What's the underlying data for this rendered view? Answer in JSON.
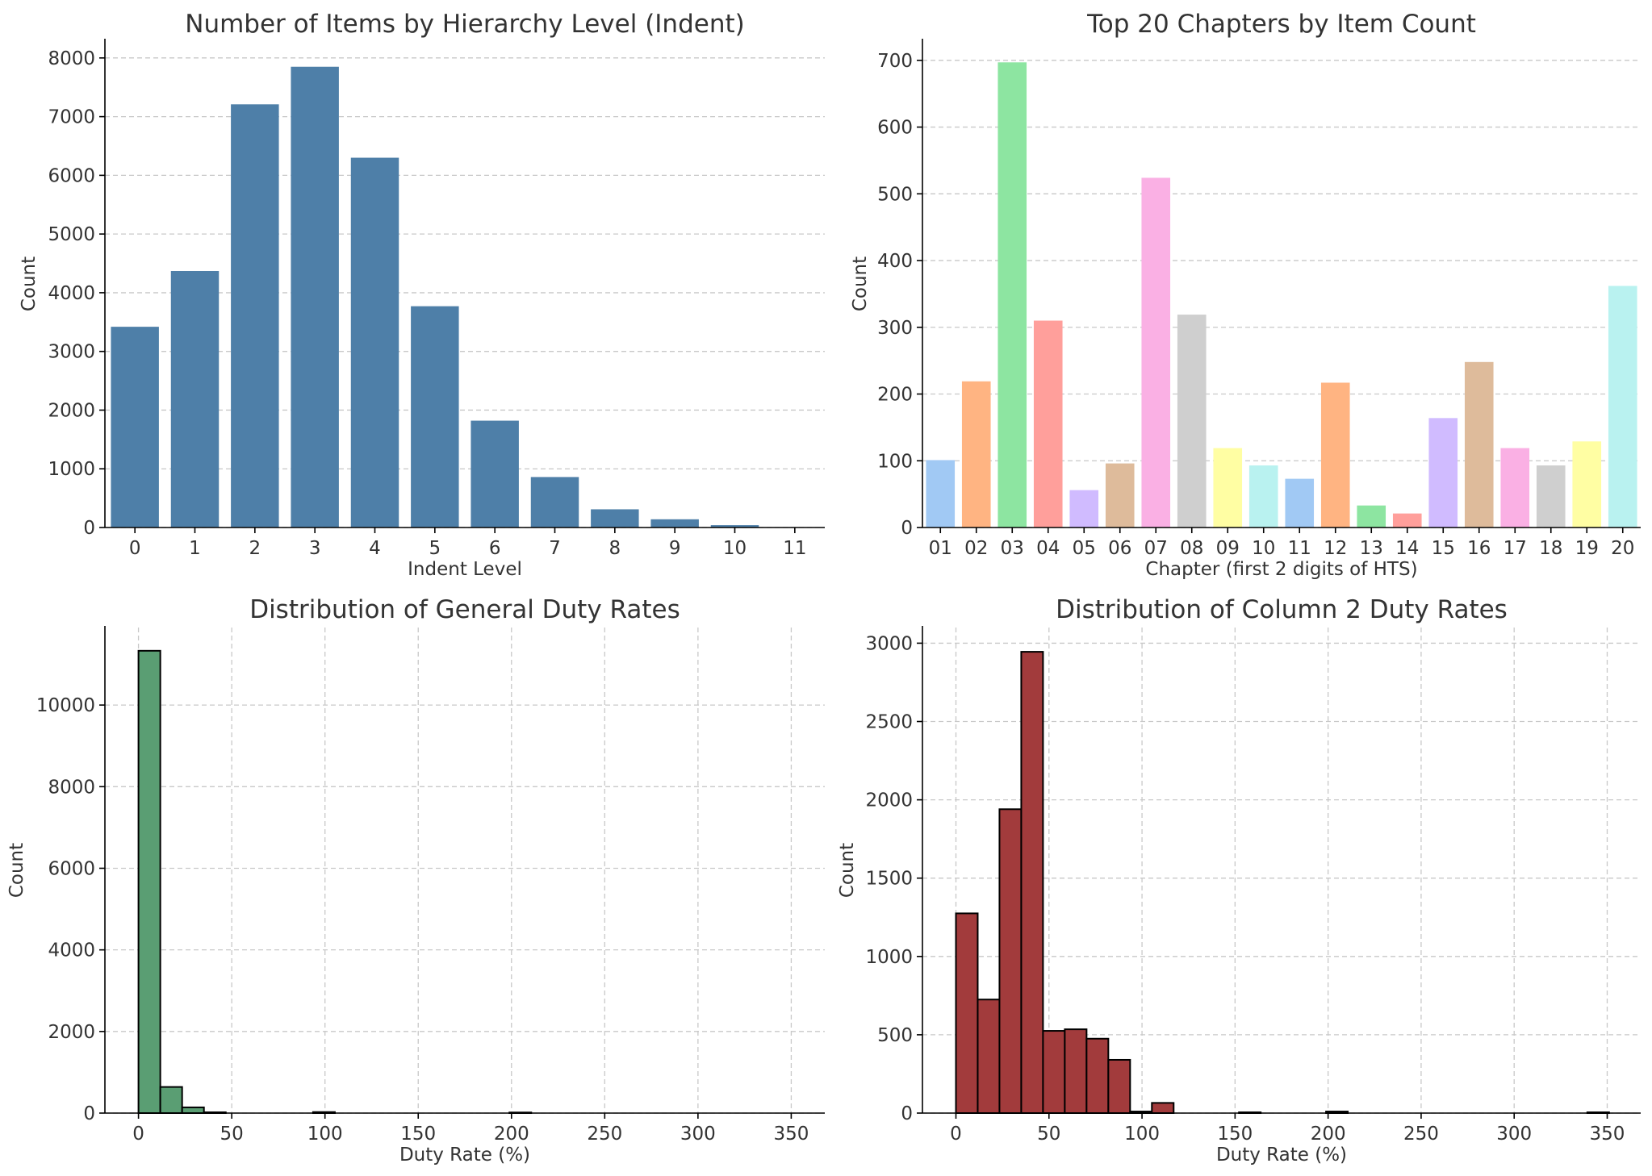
{
  "chart_data": [
    {
      "type": "bar",
      "title": "Number of Items by Hierarchy Level (Indent)",
      "xlabel": "Indent Level",
      "ylabel": "Count",
      "categories": [
        "0",
        "1",
        "2",
        "3",
        "4",
        "5",
        "6",
        "7",
        "8",
        "9",
        "10",
        "11"
      ],
      "values": [
        3420,
        4370,
        7210,
        7850,
        6300,
        3770,
        1820,
        860,
        310,
        140,
        40,
        5
      ],
      "ylim": [
        0,
        8300
      ],
      "yticks": [
        0,
        1000,
        2000,
        3000,
        4000,
        5000,
        6000,
        7000,
        8000
      ],
      "grid": "y",
      "color": "#4e7fa8"
    },
    {
      "type": "bar",
      "title": "Top 20 Chapters by Item Count",
      "xlabel": "Chapter (first 2 digits of HTS)",
      "ylabel": "Count",
      "categories": [
        "01",
        "02",
        "03",
        "04",
        "05",
        "06",
        "07",
        "08",
        "09",
        "10",
        "11",
        "12",
        "13",
        "14",
        "15",
        "16",
        "17",
        "18",
        "19",
        "20"
      ],
      "values": [
        101,
        219,
        697,
        310,
        56,
        96,
        524,
        319,
        119,
        93,
        73,
        217,
        33,
        21,
        164,
        248,
        119,
        93,
        129,
        362
      ],
      "colors": [
        "#a1c9f4",
        "#ffb482",
        "#8de5a1",
        "#ff9f9b",
        "#d0bbff",
        "#debb9b",
        "#fab0e4",
        "#cfcfcf",
        "#fffea3",
        "#b9f2f0",
        "#a1c9f4",
        "#ffb482",
        "#8de5a1",
        "#ff9f9b",
        "#d0bbff",
        "#debb9b",
        "#fab0e4",
        "#cfcfcf",
        "#fffea3",
        "#b9f2f0"
      ],
      "ylim": [
        0,
        730
      ],
      "yticks": [
        0,
        100,
        200,
        300,
        400,
        500,
        600,
        700
      ],
      "grid": "y"
    },
    {
      "type": "bar",
      "title": "Distribution of General Duty Rates",
      "xlabel": "Duty Rate (%)",
      "ylabel": "Count",
      "bin_width": 11.7,
      "bins": [
        {
          "x0": 0,
          "count": 11330
        },
        {
          "x0": 11.7,
          "count": 640
        },
        {
          "x0": 23.4,
          "count": 140
        },
        {
          "x0": 35.1,
          "count": 20
        },
        {
          "x0": 93.6,
          "count": 25
        },
        {
          "x0": 198.9,
          "count": 15
        }
      ],
      "xlim": [
        -18,
        368
      ],
      "ylim": [
        0,
        11900
      ],
      "xticks": [
        0,
        50,
        100,
        150,
        200,
        250,
        300,
        350
      ],
      "yticks": [
        0,
        2000,
        4000,
        6000,
        8000,
        10000
      ],
      "grid": "both",
      "color": "#5a9e73"
    },
    {
      "type": "bar",
      "title": "Distribution of Column 2 Duty Rates",
      "xlabel": "Duty Rate (%)",
      "ylabel": "Count",
      "bin_width": 11.7,
      "bins": [
        {
          "x0": 0,
          "count": 1275
        },
        {
          "x0": 11.7,
          "count": 725
        },
        {
          "x0": 23.4,
          "count": 1940
        },
        {
          "x0": 35.1,
          "count": 2945
        },
        {
          "x0": 46.8,
          "count": 525
        },
        {
          "x0": 58.5,
          "count": 535
        },
        {
          "x0": 70.2,
          "count": 475
        },
        {
          "x0": 81.9,
          "count": 340
        },
        {
          "x0": 93.6,
          "count": 10
        },
        {
          "x0": 105.3,
          "count": 65
        },
        {
          "x0": 152.1,
          "count": 5
        },
        {
          "x0": 198.9,
          "count": 10
        },
        {
          "x0": 339.3,
          "count": 5
        }
      ],
      "xlim": [
        -18,
        368
      ],
      "ylim": [
        0,
        3100
      ],
      "xticks": [
        0,
        50,
        100,
        150,
        200,
        250,
        300,
        350
      ],
      "yticks": [
        0,
        500,
        1000,
        1500,
        2000,
        2500,
        3000
      ],
      "grid": "both",
      "color": "#a23b3c"
    }
  ]
}
